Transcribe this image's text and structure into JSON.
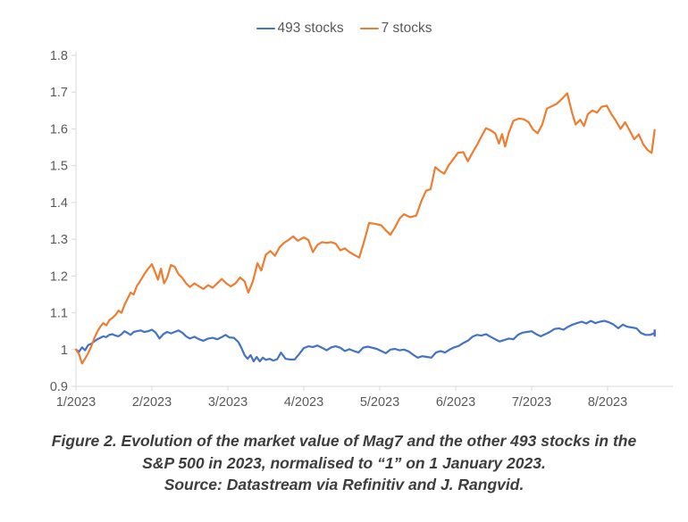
{
  "page": {
    "background": "#ffffff"
  },
  "legend": {
    "items": [
      {
        "label": "493 stocks",
        "color": "#4472C4"
      },
      {
        "label": "7 stocks",
        "color": "#ED7D31"
      }
    ]
  },
  "chart_data": {
    "type": "line",
    "title": "Figure 2. Evolution of the market value of Mag7 and the other 493 stocks in the S&P 500 in 2023, normalised to “1” on 1 January 2023.",
    "source": "Source: Datastream via Refinitiv and J. Rangvid.",
    "xlabel": "",
    "ylabel": "",
    "x_unit": "month of 2023 (fractional, 1 = 1 January 2023)",
    "normalisation": "1 on 1 January 2023",
    "xlim": [
      1,
      8.65
    ],
    "ylim": [
      0.9,
      1.8
    ],
    "grid": false,
    "legend_position": "top",
    "axis_color": "#d9d9d9",
    "tick_text_color": "#595959",
    "y_axis": {
      "ticks": [
        {
          "value": 0.9,
          "label": "0.9"
        },
        {
          "value": 1.0,
          "label": "1"
        },
        {
          "value": 1.1,
          "label": "1.1"
        },
        {
          "value": 1.2,
          "label": "1.2"
        },
        {
          "value": 1.3,
          "label": "1.3"
        },
        {
          "value": 1.4,
          "label": "1.4"
        },
        {
          "value": 1.5,
          "label": "1.5"
        },
        {
          "value": 1.6,
          "label": "1.6"
        },
        {
          "value": 1.7,
          "label": "1.7"
        },
        {
          "value": 1.8,
          "label": "1.8"
        }
      ]
    },
    "x_axis": {
      "ticks": [
        {
          "month": 1,
          "label": "1/2023"
        },
        {
          "month": 2,
          "label": "2/2023"
        },
        {
          "month": 3,
          "label": "3/2023"
        },
        {
          "month": 4,
          "label": "4/2023"
        },
        {
          "month": 5,
          "label": "5/2023"
        },
        {
          "month": 6,
          "label": "6/2023"
        },
        {
          "month": 7,
          "label": "7/2023"
        },
        {
          "month": 8,
          "label": "8/2023"
        }
      ]
    },
    "series": [
      {
        "name": "493 stocks",
        "color": "#4472C4",
        "end_cap": true,
        "points": [
          [
            1.0,
            1.0
          ],
          [
            1.04,
            0.994
          ],
          [
            1.08,
            1.006
          ],
          [
            1.12,
            0.998
          ],
          [
            1.16,
            1.012
          ],
          [
            1.2,
            1.016
          ],
          [
            1.24,
            1.022
          ],
          [
            1.28,
            1.028
          ],
          [
            1.32,
            1.032
          ],
          [
            1.36,
            1.036
          ],
          [
            1.4,
            1.034
          ],
          [
            1.44,
            1.04
          ],
          [
            1.48,
            1.042
          ],
          [
            1.52,
            1.038
          ],
          [
            1.56,
            1.036
          ],
          [
            1.6,
            1.042
          ],
          [
            1.64,
            1.05
          ],
          [
            1.68,
            1.045
          ],
          [
            1.72,
            1.04
          ],
          [
            1.76,
            1.048
          ],
          [
            1.8,
            1.05
          ],
          [
            1.85,
            1.052
          ],
          [
            1.9,
            1.048
          ],
          [
            1.95,
            1.05
          ],
          [
            2.0,
            1.054
          ],
          [
            2.05,
            1.046
          ],
          [
            2.1,
            1.03
          ],
          [
            2.15,
            1.042
          ],
          [
            2.2,
            1.048
          ],
          [
            2.25,
            1.044
          ],
          [
            2.3,
            1.048
          ],
          [
            2.35,
            1.052
          ],
          [
            2.4,
            1.046
          ],
          [
            2.45,
            1.036
          ],
          [
            2.5,
            1.03
          ],
          [
            2.56,
            1.035
          ],
          [
            2.62,
            1.028
          ],
          [
            2.68,
            1.024
          ],
          [
            2.74,
            1.03
          ],
          [
            2.8,
            1.032
          ],
          [
            2.86,
            1.028
          ],
          [
            2.92,
            1.034
          ],
          [
            2.97,
            1.04
          ],
          [
            3.02,
            1.033
          ],
          [
            3.08,
            1.032
          ],
          [
            3.14,
            1.02
          ],
          [
            3.18,
            1.004
          ],
          [
            3.22,
            0.985
          ],
          [
            3.26,
            0.975
          ],
          [
            3.3,
            0.985
          ],
          [
            3.34,
            0.968
          ],
          [
            3.38,
            0.98
          ],
          [
            3.42,
            0.968
          ],
          [
            3.46,
            0.978
          ],
          [
            3.5,
            0.972
          ],
          [
            3.55,
            0.975
          ],
          [
            3.6,
            0.97
          ],
          [
            3.65,
            0.974
          ],
          [
            3.7,
            0.992
          ],
          [
            3.76,
            0.975
          ],
          [
            3.82,
            0.973
          ],
          [
            3.88,
            0.973
          ],
          [
            3.94,
            0.988
          ],
          [
            4.0,
            1.004
          ],
          [
            4.06,
            1.009
          ],
          [
            4.12,
            1.007
          ],
          [
            4.18,
            1.011
          ],
          [
            4.24,
            1.005
          ],
          [
            4.3,
            0.998
          ],
          [
            4.36,
            1.006
          ],
          [
            4.42,
            1.009
          ],
          [
            4.48,
            1.005
          ],
          [
            4.54,
            0.996
          ],
          [
            4.6,
            1.001
          ],
          [
            4.66,
            0.996
          ],
          [
            4.72,
            0.992
          ],
          [
            4.78,
            1.005
          ],
          [
            4.84,
            1.008
          ],
          [
            4.9,
            1.005
          ],
          [
            4.96,
            1.002
          ],
          [
            5.02,
            0.996
          ],
          [
            5.08,
            0.99
          ],
          [
            5.14,
            1.0
          ],
          [
            5.2,
            1.002
          ],
          [
            5.26,
            0.998
          ],
          [
            5.32,
            1.0
          ],
          [
            5.38,
            0.995
          ],
          [
            5.44,
            0.986
          ],
          [
            5.5,
            0.978
          ],
          [
            5.56,
            0.982
          ],
          [
            5.62,
            0.98
          ],
          [
            5.68,
            0.978
          ],
          [
            5.74,
            0.992
          ],
          [
            5.8,
            0.996
          ],
          [
            5.86,
            0.992
          ],
          [
            5.92,
            1.0
          ],
          [
            5.98,
            1.006
          ],
          [
            6.04,
            1.01
          ],
          [
            6.1,
            1.018
          ],
          [
            6.16,
            1.024
          ],
          [
            6.22,
            1.035
          ],
          [
            6.28,
            1.04
          ],
          [
            6.34,
            1.038
          ],
          [
            6.4,
            1.042
          ],
          [
            6.46,
            1.035
          ],
          [
            6.52,
            1.028
          ],
          [
            6.58,
            1.022
          ],
          [
            6.64,
            1.026
          ],
          [
            6.7,
            1.03
          ],
          [
            6.76,
            1.028
          ],
          [
            6.82,
            1.04
          ],
          [
            6.88,
            1.046
          ],
          [
            6.94,
            1.048
          ],
          [
            7.0,
            1.05
          ],
          [
            7.06,
            1.042
          ],
          [
            7.12,
            1.036
          ],
          [
            7.18,
            1.042
          ],
          [
            7.24,
            1.048
          ],
          [
            7.3,
            1.056
          ],
          [
            7.36,
            1.058
          ],
          [
            7.42,
            1.054
          ],
          [
            7.48,
            1.062
          ],
          [
            7.54,
            1.068
          ],
          [
            7.6,
            1.072
          ],
          [
            7.66,
            1.076
          ],
          [
            7.72,
            1.071
          ],
          [
            7.78,
            1.078
          ],
          [
            7.84,
            1.072
          ],
          [
            7.9,
            1.076
          ],
          [
            7.96,
            1.078
          ],
          [
            8.02,
            1.074
          ],
          [
            8.08,
            1.068
          ],
          [
            8.14,
            1.058
          ],
          [
            8.2,
            1.068
          ],
          [
            8.26,
            1.062
          ],
          [
            8.32,
            1.06
          ],
          [
            8.38,
            1.058
          ],
          [
            8.44,
            1.045
          ],
          [
            8.5,
            1.04
          ],
          [
            8.56,
            1.04
          ],
          [
            8.62,
            1.045
          ]
        ]
      },
      {
        "name": "7 stocks",
        "color": "#ED7D31",
        "end_cap": false,
        "points": [
          [
            1.0,
            1.0
          ],
          [
            1.04,
            0.988
          ],
          [
            1.08,
            0.962
          ],
          [
            1.12,
            0.975
          ],
          [
            1.16,
            0.99
          ],
          [
            1.2,
            1.008
          ],
          [
            1.24,
            1.03
          ],
          [
            1.28,
            1.048
          ],
          [
            1.32,
            1.062
          ],
          [
            1.36,
            1.072
          ],
          [
            1.4,
            1.066
          ],
          [
            1.44,
            1.08
          ],
          [
            1.48,
            1.086
          ],
          [
            1.52,
            1.094
          ],
          [
            1.56,
            1.106
          ],
          [
            1.6,
            1.1
          ],
          [
            1.64,
            1.122
          ],
          [
            1.68,
            1.138
          ],
          [
            1.72,
            1.155
          ],
          [
            1.76,
            1.15
          ],
          [
            1.8,
            1.172
          ],
          [
            1.85,
            1.188
          ],
          [
            1.9,
            1.205
          ],
          [
            1.95,
            1.22
          ],
          [
            2.0,
            1.232
          ],
          [
            2.04,
            1.212
          ],
          [
            2.08,
            1.19
          ],
          [
            2.12,
            1.22
          ],
          [
            2.16,
            1.18
          ],
          [
            2.2,
            1.195
          ],
          [
            2.25,
            1.23
          ],
          [
            2.3,
            1.225
          ],
          [
            2.35,
            1.205
          ],
          [
            2.4,
            1.195
          ],
          [
            2.45,
            1.18
          ],
          [
            2.5,
            1.17
          ],
          [
            2.56,
            1.18
          ],
          [
            2.62,
            1.172
          ],
          [
            2.68,
            1.165
          ],
          [
            2.74,
            1.175
          ],
          [
            2.8,
            1.168
          ],
          [
            2.86,
            1.18
          ],
          [
            2.92,
            1.192
          ],
          [
            2.98,
            1.18
          ],
          [
            3.04,
            1.172
          ],
          [
            3.1,
            1.18
          ],
          [
            3.16,
            1.196
          ],
          [
            3.22,
            1.186
          ],
          [
            3.27,
            1.155
          ],
          [
            3.33,
            1.186
          ],
          [
            3.39,
            1.235
          ],
          [
            3.44,
            1.215
          ],
          [
            3.5,
            1.258
          ],
          [
            3.56,
            1.268
          ],
          [
            3.62,
            1.255
          ],
          [
            3.68,
            1.278
          ],
          [
            3.74,
            1.29
          ],
          [
            3.8,
            1.298
          ],
          [
            3.86,
            1.308
          ],
          [
            3.92,
            1.296
          ],
          [
            4.0,
            1.305
          ],
          [
            4.06,
            1.298
          ],
          [
            4.12,
            1.265
          ],
          [
            4.18,
            1.285
          ],
          [
            4.24,
            1.292
          ],
          [
            4.3,
            1.29
          ],
          [
            4.36,
            1.292
          ],
          [
            4.42,
            1.288
          ],
          [
            4.48,
            1.27
          ],
          [
            4.54,
            1.275
          ],
          [
            4.6,
            1.265
          ],
          [
            4.66,
            1.258
          ],
          [
            4.73,
            1.25
          ],
          [
            4.8,
            1.298
          ],
          [
            4.86,
            1.344
          ],
          [
            4.94,
            1.342
          ],
          [
            5.02,
            1.338
          ],
          [
            5.08,
            1.324
          ],
          [
            5.14,
            1.312
          ],
          [
            5.2,
            1.332
          ],
          [
            5.26,
            1.356
          ],
          [
            5.32,
            1.368
          ],
          [
            5.4,
            1.36
          ],
          [
            5.48,
            1.364
          ],
          [
            5.55,
            1.405
          ],
          [
            5.61,
            1.432
          ],
          [
            5.67,
            1.436
          ],
          [
            5.73,
            1.496
          ],
          [
            5.79,
            1.486
          ],
          [
            5.85,
            1.478
          ],
          [
            5.91,
            1.502
          ],
          [
            5.97,
            1.518
          ],
          [
            6.03,
            1.535
          ],
          [
            6.1,
            1.537
          ],
          [
            6.16,
            1.512
          ],
          [
            6.22,
            1.535
          ],
          [
            6.28,
            1.556
          ],
          [
            6.34,
            1.58
          ],
          [
            6.4,
            1.602
          ],
          [
            6.46,
            1.596
          ],
          [
            6.52,
            1.588
          ],
          [
            6.57,
            1.56
          ],
          [
            6.61,
            1.586
          ],
          [
            6.65,
            1.552
          ],
          [
            6.7,
            1.59
          ],
          [
            6.76,
            1.622
          ],
          [
            6.83,
            1.628
          ],
          [
            6.9,
            1.626
          ],
          [
            6.96,
            1.618
          ],
          [
            7.02,
            1.598
          ],
          [
            7.08,
            1.588
          ],
          [
            7.14,
            1.612
          ],
          [
            7.2,
            1.655
          ],
          [
            7.27,
            1.662
          ],
          [
            7.33,
            1.668
          ],
          [
            7.4,
            1.682
          ],
          [
            7.47,
            1.697
          ],
          [
            7.53,
            1.645
          ],
          [
            7.58,
            1.612
          ],
          [
            7.64,
            1.625
          ],
          [
            7.69,
            1.608
          ],
          [
            7.74,
            1.64
          ],
          [
            7.8,
            1.65
          ],
          [
            7.86,
            1.644
          ],
          [
            7.92,
            1.66
          ],
          [
            7.99,
            1.663
          ],
          [
            8.05,
            1.64
          ],
          [
            8.11,
            1.622
          ],
          [
            8.17,
            1.6
          ],
          [
            8.23,
            1.618
          ],
          [
            8.29,
            1.596
          ],
          [
            8.35,
            1.572
          ],
          [
            8.41,
            1.585
          ],
          [
            8.47,
            1.558
          ],
          [
            8.53,
            1.542
          ],
          [
            8.58,
            1.535
          ],
          [
            8.62,
            1.597
          ]
        ]
      }
    ]
  },
  "caption": {
    "line1": "Figure 2. Evolution of the market value of Mag7 and the other 493 stocks in the",
    "line2": "S&P 500 in 2023, normalised to “1” on 1 January 2023.",
    "line3": "Source: Datastream via Refinitiv and J. Rangvid."
  }
}
